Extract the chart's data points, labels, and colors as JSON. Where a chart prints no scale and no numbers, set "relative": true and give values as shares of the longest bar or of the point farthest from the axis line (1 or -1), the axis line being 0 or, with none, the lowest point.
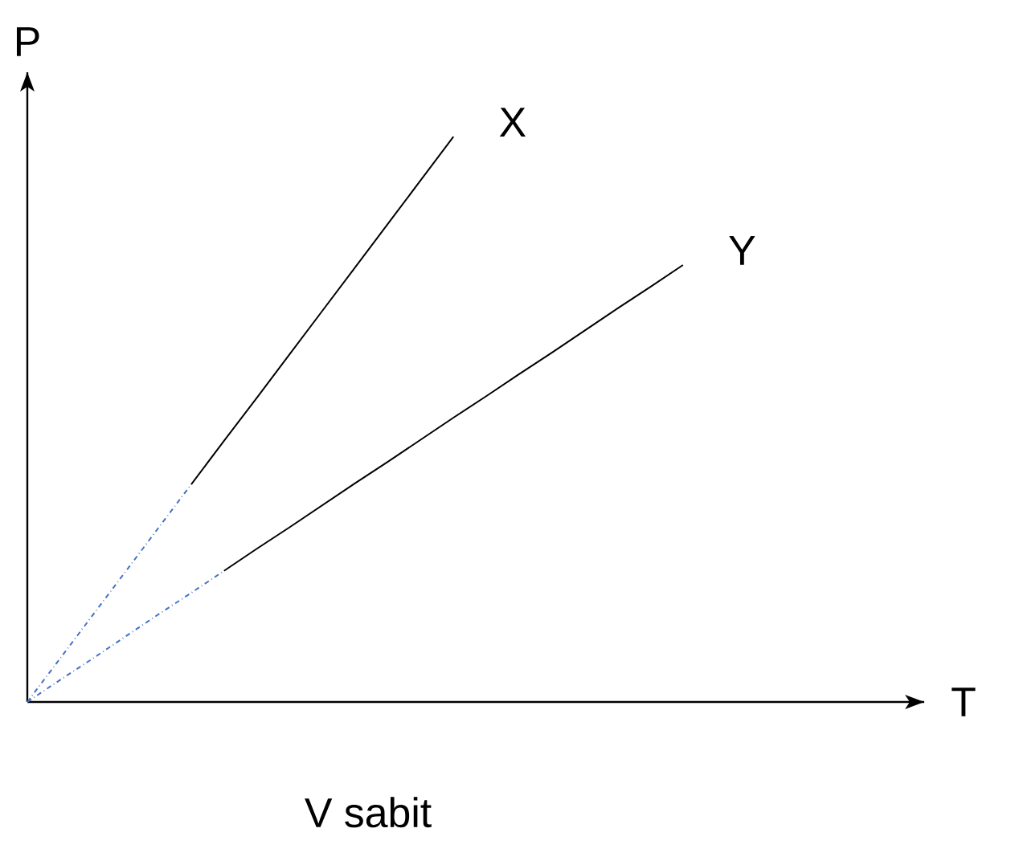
{
  "chart_data": {
    "type": "line",
    "relative": true,
    "ylabel": "P",
    "annotations": [
      "V sabit",
      "T"
    ],
    "categories": [
      null,
      null,
      null,
      null,
      null,
      null,
      null,
      null,
      null,
      null,
      null,
      null,
      null,
      null,
      null,
      null,
      null,
      null,
      null,
      null,
      null
    ],
    "series": [
      {
        "name": "X",
        "color": "#000000",
        "line_style": "solid",
        "values": [
          null,
          null,
          null,
          null,
          null,
          0.385,
          0.462,
          0.538,
          0.615,
          0.692,
          0.769,
          0.846,
          0.923,
          1.0,
          null,
          null,
          null,
          null,
          null,
          null,
          null
        ]
      },
      {
        "color": "#4472c4",
        "line_style": "dashed",
        "values": [
          0,
          0.077,
          0.154,
          0.231,
          0.308,
          0.385,
          null,
          null,
          null,
          null,
          null,
          null,
          null,
          null,
          null,
          null,
          null,
          null,
          null,
          null,
          null
        ]
      },
      {
        "name": "Y",
        "color": "#000000",
        "line_style": "solid",
        "values": [
          null,
          null,
          null,
          null,
          null,
          null,
          0.232,
          0.271,
          0.309,
          0.348,
          0.387,
          0.425,
          0.464,
          0.503,
          0.541,
          0.58,
          0.618,
          0.657,
          0.696,
          0.734,
          0.773
        ]
      },
      {
        "color": "#4472c4",
        "line_style": "dashed",
        "values": [
          0,
          0.039,
          0.077,
          0.116,
          0.155,
          0.193,
          0.232,
          null,
          null,
          null,
          null,
          null,
          null,
          null,
          null,
          null,
          null,
          null,
          null,
          null,
          null
        ]
      }
    ]
  }
}
